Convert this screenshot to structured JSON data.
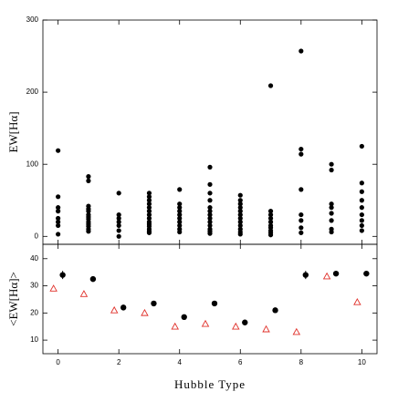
{
  "chart_data": [
    {
      "type": "scatter",
      "ylabel": "EW[Hα]",
      "xlim": [
        -0.5,
        10.5
      ],
      "ylim": [
        -11,
        300
      ],
      "yticks": [
        0,
        100,
        200,
        300
      ],
      "series": [
        {
          "color": "#000000",
          "marker": "circle",
          "x": [
            0,
            0,
            0,
            0,
            0,
            0,
            0,
            0,
            1,
            1,
            1,
            1,
            1,
            1,
            1,
            1,
            1,
            1,
            1,
            1,
            1,
            2,
            2,
            2,
            2,
            2,
            2,
            2,
            3,
            3,
            3,
            3,
            3,
            3,
            3,
            3,
            3,
            3,
            3,
            3,
            3,
            3,
            4,
            4,
            4,
            4,
            4,
            4,
            4,
            4,
            4,
            4,
            5,
            5,
            5,
            5,
            5,
            5,
            5,
            5,
            5,
            5,
            5,
            5,
            5,
            6,
            6,
            6,
            6,
            6,
            6,
            6,
            6,
            6,
            6,
            6,
            6,
            7,
            7,
            7,
            7,
            7,
            7,
            7,
            7,
            7,
            7,
            8,
            8,
            8,
            8,
            8,
            8,
            8,
            8,
            9,
            9,
            9,
            9,
            9,
            9,
            9,
            9,
            10,
            10,
            10,
            10,
            10,
            10,
            10,
            10,
            10
          ],
          "values": [
            119,
            55,
            40,
            35,
            25,
            20,
            15,
            3,
            83,
            77,
            42,
            38,
            35,
            30,
            27,
            24,
            20,
            17,
            14,
            10,
            7,
            60,
            30,
            25,
            20,
            15,
            8,
            0,
            60,
            55,
            50,
            45,
            40,
            35,
            30,
            25,
            20,
            17,
            14,
            10,
            7,
            5,
            65,
            45,
            40,
            35,
            30,
            25,
            20,
            15,
            10,
            6,
            96,
            72,
            60,
            50,
            40,
            35,
            30,
            25,
            20,
            15,
            10,
            7,
            4,
            57,
            50,
            45,
            40,
            35,
            30,
            25,
            20,
            15,
            10,
            6,
            3,
            209,
            35,
            30,
            25,
            20,
            15,
            12,
            8,
            5,
            2,
            257,
            121,
            114,
            65,
            30,
            22,
            12,
            5,
            100,
            92,
            45,
            40,
            32,
            22,
            10,
            6,
            125,
            74,
            62,
            50,
            40,
            30,
            22,
            15,
            8
          ]
        }
      ]
    },
    {
      "type": "scatter",
      "ylabel": "<EW[Hα]>",
      "xlabel": "Hubble Type",
      "xlim": [
        -0.5,
        10.5
      ],
      "ylim": [
        5,
        45.3
      ],
      "yticks": [
        10,
        20,
        30,
        40
      ],
      "xticks": [
        0,
        2,
        4,
        6,
        8,
        10
      ],
      "series": [
        {
          "color": "#000000",
          "marker": "circle",
          "x": [
            0.15,
            1.15,
            2.15,
            3.15,
            4.15,
            5.15,
            6.15,
            7.15,
            8.15,
            9.15,
            10.15
          ],
          "values": [
            34,
            32.5,
            22,
            23.5,
            18.5,
            23.5,
            16.5,
            21,
            34,
            34.5,
            34.5
          ],
          "errors": [
            1.5,
            1,
            1,
            0.5,
            0.5,
            0.5,
            0.5,
            0.5,
            1.5,
            1,
            1
          ]
        },
        {
          "color": "#e0302a",
          "marker": "triangle",
          "x": [
            -0.15,
            0.85,
            1.85,
            2.85,
            3.85,
            4.85,
            5.85,
            6.85,
            7.85,
            8.85,
            9.85
          ],
          "values": [
            29,
            27,
            21,
            20,
            15,
            16,
            15,
            14,
            13,
            33.5,
            24
          ]
        }
      ]
    }
  ]
}
